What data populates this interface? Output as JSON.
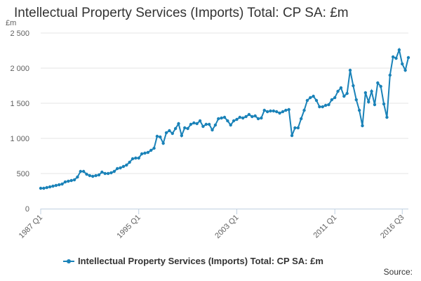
{
  "title": "Intellectual Property Services (Imports) Total: CP SA: £m",
  "source_label": "Source:",
  "colors": {
    "series": "#1a82b8",
    "grid": "#e6e6e6",
    "axis": "#c0d0e0"
  },
  "chart_data": {
    "type": "line",
    "title": "Intellectual Property Services (Imports) Total: CP SA: £m",
    "ylabel": "£m",
    "ylim": [
      0,
      2500
    ],
    "yticks": [
      0,
      500,
      1000,
      1500,
      2000,
      2500
    ],
    "ytick_labels": [
      "0",
      "500",
      "1 000",
      "1 500",
      "2 000",
      "2 500"
    ],
    "xtick_labels": [
      "1987 Q1",
      "1995 Q1",
      "2003 Q1",
      "2011 Q1",
      "2016 Q3"
    ],
    "xtick_indices": [
      0,
      32,
      64,
      96,
      118
    ],
    "series": [
      {
        "name": "Intellectual Property Services (Imports) Total: CP SA: £m",
        "start": "1987 Q1",
        "values": [
          290,
          290,
          300,
          310,
          320,
          330,
          340,
          350,
          380,
          390,
          400,
          410,
          450,
          530,
          530,
          490,
          470,
          460,
          470,
          480,
          520,
          500,
          500,
          510,
          530,
          570,
          580,
          600,
          620,
          660,
          710,
          720,
          720,
          780,
          790,
          800,
          830,
          860,
          1030,
          1020,
          930,
          1080,
          1110,
          1070,
          1140,
          1210,
          1040,
          1150,
          1140,
          1200,
          1220,
          1210,
          1250,
          1170,
          1200,
          1200,
          1120,
          1190,
          1280,
          1290,
          1300,
          1250,
          1190,
          1250,
          1270,
          1300,
          1290,
          1310,
          1340,
          1310,
          1320,
          1280,
          1290,
          1400,
          1380,
          1390,
          1390,
          1380,
          1360,
          1380,
          1400,
          1410,
          1040,
          1150,
          1150,
          1280,
          1400,
          1540,
          1580,
          1600,
          1540,
          1450,
          1450,
          1470,
          1480,
          1550,
          1580,
          1670,
          1720,
          1600,
          1640,
          1970,
          1750,
          1550,
          1400,
          1180,
          1650,
          1520,
          1670,
          1480,
          1790,
          1740,
          1490,
          1300,
          1900,
          2160,
          2140,
          2260,
          2060,
          1970,
          2150
        ]
      }
    ],
    "legend": "bottom-center"
  }
}
